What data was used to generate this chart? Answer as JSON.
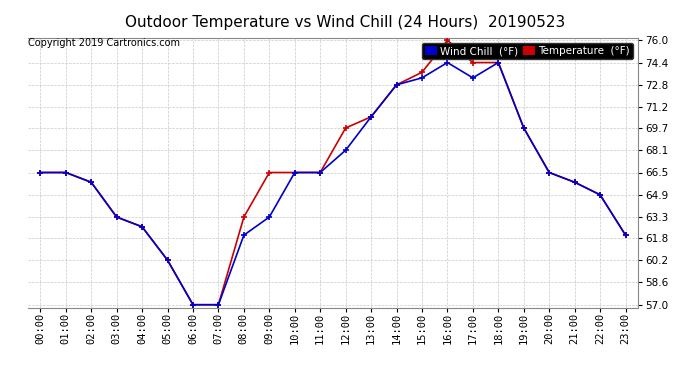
{
  "title": "Outdoor Temperature vs Wind Chill (24 Hours)  20190523",
  "copyright": "Copyright 2019 Cartronics.com",
  "legend_wind_chill": "Wind Chill  (°F)",
  "legend_temperature": "Temperature  (°F)",
  "hours": [
    "00:00",
    "01:00",
    "02:00",
    "03:00",
    "04:00",
    "05:00",
    "06:00",
    "07:00",
    "08:00",
    "09:00",
    "10:00",
    "11:00",
    "12:00",
    "13:00",
    "14:00",
    "15:00",
    "16:00",
    "17:00",
    "18:00",
    "19:00",
    "20:00",
    "21:00",
    "22:00",
    "23:00"
  ],
  "temperature": [
    66.5,
    66.5,
    65.8,
    63.3,
    62.6,
    60.2,
    57.0,
    57.0,
    63.3,
    66.5,
    66.5,
    66.5,
    69.7,
    70.5,
    72.8,
    73.7,
    76.0,
    74.4,
    74.4,
    69.7,
    66.5,
    65.8,
    64.9,
    62.0
  ],
  "wind_chill": [
    66.5,
    66.5,
    65.8,
    63.3,
    62.6,
    60.2,
    57.0,
    57.0,
    62.0,
    63.3,
    66.5,
    66.5,
    68.1,
    70.5,
    72.8,
    73.3,
    74.4,
    73.3,
    74.4,
    69.7,
    66.5,
    65.8,
    64.9,
    62.0
  ],
  "ylim_min": 57.0,
  "ylim_max": 76.0,
  "yticks": [
    57.0,
    58.6,
    60.2,
    61.8,
    63.3,
    64.9,
    66.5,
    68.1,
    69.7,
    71.2,
    72.8,
    74.4,
    76.0
  ],
  "temp_color": "#cc0000",
  "wind_chill_color": "#0000cc",
  "background_color": "#ffffff",
  "plot_bg_color": "#ffffff",
  "grid_color": "#bbbbbb",
  "title_fontsize": 11,
  "tick_fontsize": 7.5,
  "legend_fontsize": 7.5,
  "copyright_fontsize": 7
}
